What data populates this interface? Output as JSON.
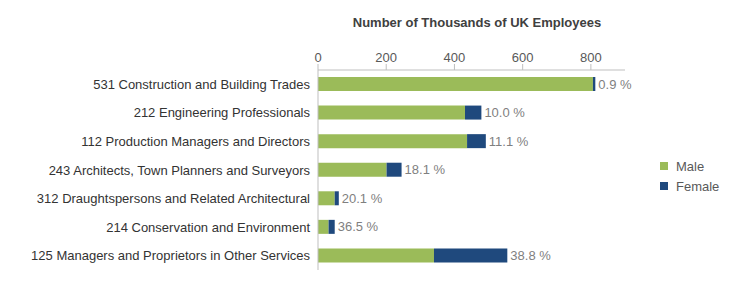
{
  "chart_data": {
    "type": "bar",
    "title": "Number of Thousands of UK Employees",
    "orientation": "horizontal",
    "stacked": true,
    "grid": false,
    "legend": "right",
    "categories": [
      "531 Construction and Building Trades",
      "212 Engineering Professionals",
      "112 Production Managers and Directors",
      "243 Architects, Town Planners and Surveyors",
      "312 Draughtspersons and Related Architectural",
      "214 Conservation and Environment",
      "125 Managers and Proprietors in Other Services"
    ],
    "series": [
      {
        "name": "Male",
        "color": "#9bbb59",
        "values": [
          806,
          431,
          437,
          201,
          49,
          31,
          340
        ]
      },
      {
        "name": "Female",
        "color": "#1f497d",
        "values": [
          7,
          48,
          55,
          44,
          12,
          18,
          215
        ]
      }
    ],
    "annotations": [
      "0.9 %",
      "10.0 %",
      "11.1 %",
      "18.1 %",
      "20.1 %",
      "36.5 %",
      "38.8 %"
    ],
    "xlim": [
      0,
      900
    ],
    "xticks": [
      0,
      200,
      400,
      600,
      800
    ]
  }
}
